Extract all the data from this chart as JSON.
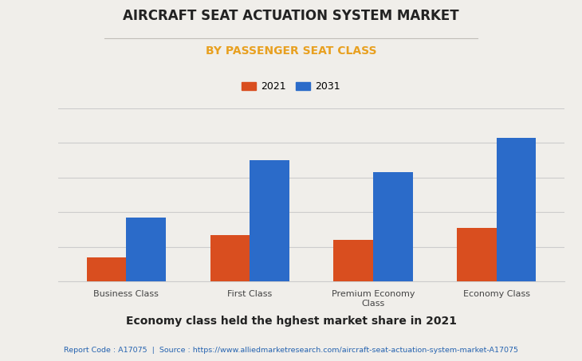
{
  "title": "AIRCRAFT SEAT ACTUATION SYSTEM MARKET",
  "subtitle": "BY PASSENGER SEAT CLASS",
  "title_color": "#222222",
  "subtitle_color": "#e8a020",
  "background_color": "#f0eeea",
  "categories": [
    "Business Class",
    "First Class",
    "Premium Economy\nClass",
    "Economy Class"
  ],
  "values_2021": [
    14,
    27,
    24,
    31
  ],
  "values_2031": [
    37,
    70,
    63,
    83
  ],
  "color_2021": "#d94e1f",
  "color_2031": "#2b6bc9",
  "legend_labels": [
    "2021",
    "2031"
  ],
  "bar_width": 0.32,
  "ylim": [
    0,
    100
  ],
  "grid_color": "#cccccc",
  "footer_text": "Economy class held the hghest market share in 2021",
  "source_text": "Report Code : A17075  |  Source : https://www.alliedmarketresearch.com/aircraft-seat-actuation-system-market-A17075",
  "source_color": "#2563b0",
  "footer_color": "#222222",
  "title_fontsize": 12,
  "subtitle_fontsize": 10,
  "legend_fontsize": 9,
  "tick_fontsize": 8,
  "footer_fontsize": 10,
  "source_fontsize": 6.8
}
